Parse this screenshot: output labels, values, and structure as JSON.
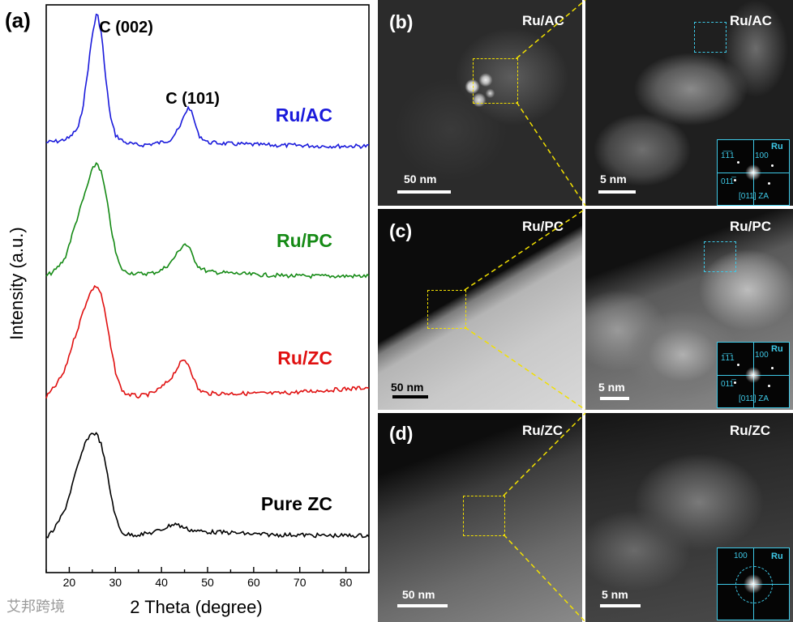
{
  "chart_data": {
    "type": "line",
    "panel_label": "(a)",
    "xlabel": "2 Theta (degree)",
    "ylabel": "Intensity (a.u.)",
    "xlim": [
      15,
      85
    ],
    "xticks": [
      20,
      30,
      40,
      50,
      60,
      70,
      80
    ],
    "yticks_shown": false,
    "peak_annotations": [
      {
        "text": "C (002)",
        "x": 26
      },
      {
        "text": "C (101)",
        "x": 45
      }
    ],
    "series": [
      {
        "name": "Ru/AC",
        "color": "#1a1adb",
        "x": [
          15,
          18,
          20,
          22,
          23,
          24,
          25,
          26,
          27,
          28,
          29,
          30,
          32,
          35,
          38,
          40,
          42,
          44,
          45,
          46,
          47,
          48,
          50,
          55,
          60,
          65,
          70,
          75,
          80,
          85
        ],
        "y": [
          0.1,
          0.12,
          0.16,
          0.3,
          0.6,
          1.05,
          1.55,
          1.85,
          1.55,
          0.9,
          0.42,
          0.2,
          0.1,
          0.06,
          0.08,
          0.1,
          0.14,
          0.3,
          0.48,
          0.58,
          0.42,
          0.2,
          0.1,
          0.08,
          0.07,
          0.06,
          0.06,
          0.05,
          0.05,
          0.05
        ]
      },
      {
        "name": "Ru/PC",
        "color": "#158a15",
        "x": [
          15,
          17,
          19,
          20,
          21,
          22,
          23,
          24,
          25,
          26,
          27,
          28,
          29,
          30,
          31,
          32,
          35,
          38,
          40,
          42,
          44,
          45,
          46,
          47,
          48,
          50,
          55,
          60,
          65,
          70,
          75,
          80,
          85
        ],
        "y": [
          0.12,
          0.2,
          0.35,
          0.55,
          0.75,
          0.95,
          1.15,
          1.35,
          1.55,
          1.65,
          1.5,
          1.2,
          0.8,
          0.45,
          0.25,
          0.18,
          0.15,
          0.16,
          0.2,
          0.3,
          0.48,
          0.56,
          0.5,
          0.36,
          0.25,
          0.18,
          0.16,
          0.14,
          0.13,
          0.12,
          0.12,
          0.12,
          0.12
        ]
      },
      {
        "name": "Ru/ZC",
        "color": "#e01010",
        "x": [
          15,
          17,
          19,
          20,
          21,
          22,
          23,
          24,
          25,
          26,
          27,
          28,
          29,
          30,
          31,
          32,
          35,
          38,
          40,
          42,
          44,
          45,
          46,
          47,
          48,
          50,
          55,
          60,
          65,
          70,
          75,
          80,
          85
        ],
        "y": [
          0.05,
          0.2,
          0.4,
          0.62,
          0.82,
          1.0,
          1.2,
          1.38,
          1.5,
          1.55,
          1.42,
          1.1,
          0.72,
          0.4,
          0.2,
          0.1,
          0.06,
          0.1,
          0.18,
          0.3,
          0.5,
          0.55,
          0.48,
          0.3,
          0.15,
          0.1,
          0.1,
          0.1,
          0.1,
          0.12,
          0.14,
          0.16,
          0.18
        ]
      },
      {
        "name": "Pure ZC",
        "color": "#000000",
        "x": [
          15,
          17,
          19,
          20,
          21,
          22,
          23,
          24,
          25,
          26,
          27,
          28,
          29,
          30,
          31,
          32,
          34,
          36,
          38,
          40,
          42,
          43,
          44,
          46,
          48,
          50,
          55,
          60,
          65,
          70,
          75,
          80,
          85
        ],
        "y": [
          0.0,
          0.15,
          0.38,
          0.58,
          0.8,
          1.0,
          1.2,
          1.35,
          1.42,
          1.4,
          1.25,
          0.95,
          0.6,
          0.3,
          0.12,
          0.06,
          0.05,
          0.06,
          0.08,
          0.12,
          0.18,
          0.2,
          0.17,
          0.12,
          0.1,
          0.09,
          0.08,
          0.06,
          0.05,
          0.05,
          0.04,
          0.04,
          0.04
        ]
      }
    ]
  },
  "panels": [
    {
      "label": "(b)",
      "left_sample": "Ru/AC",
      "right_sample": "Ru/AC",
      "left_scale": "50 nm",
      "right_scale": "5 nm",
      "fft": {
        "ru": "Ru",
        "t1": "1̅1̅1",
        "t2": "100",
        "t3": "011̅",
        "za": "[011] ZA"
      }
    },
    {
      "label": "(c)",
      "left_sample": "Ru/PC",
      "right_sample": "Ru/PC",
      "left_scale": "50 nm",
      "right_scale": "5 nm",
      "fft": {
        "ru": "Ru",
        "t1": "1̅1̅1",
        "t2": "100",
        "t3": "011̅",
        "za": "[011] ZA"
      }
    },
    {
      "label": "(d)",
      "left_sample": "Ru/ZC",
      "right_sample": "Ru/ZC",
      "left_scale": "50 nm",
      "right_scale": "5 nm",
      "fft": {
        "ru": "Ru",
        "t2": "100"
      }
    }
  ],
  "watermark": "艾邦跨境"
}
